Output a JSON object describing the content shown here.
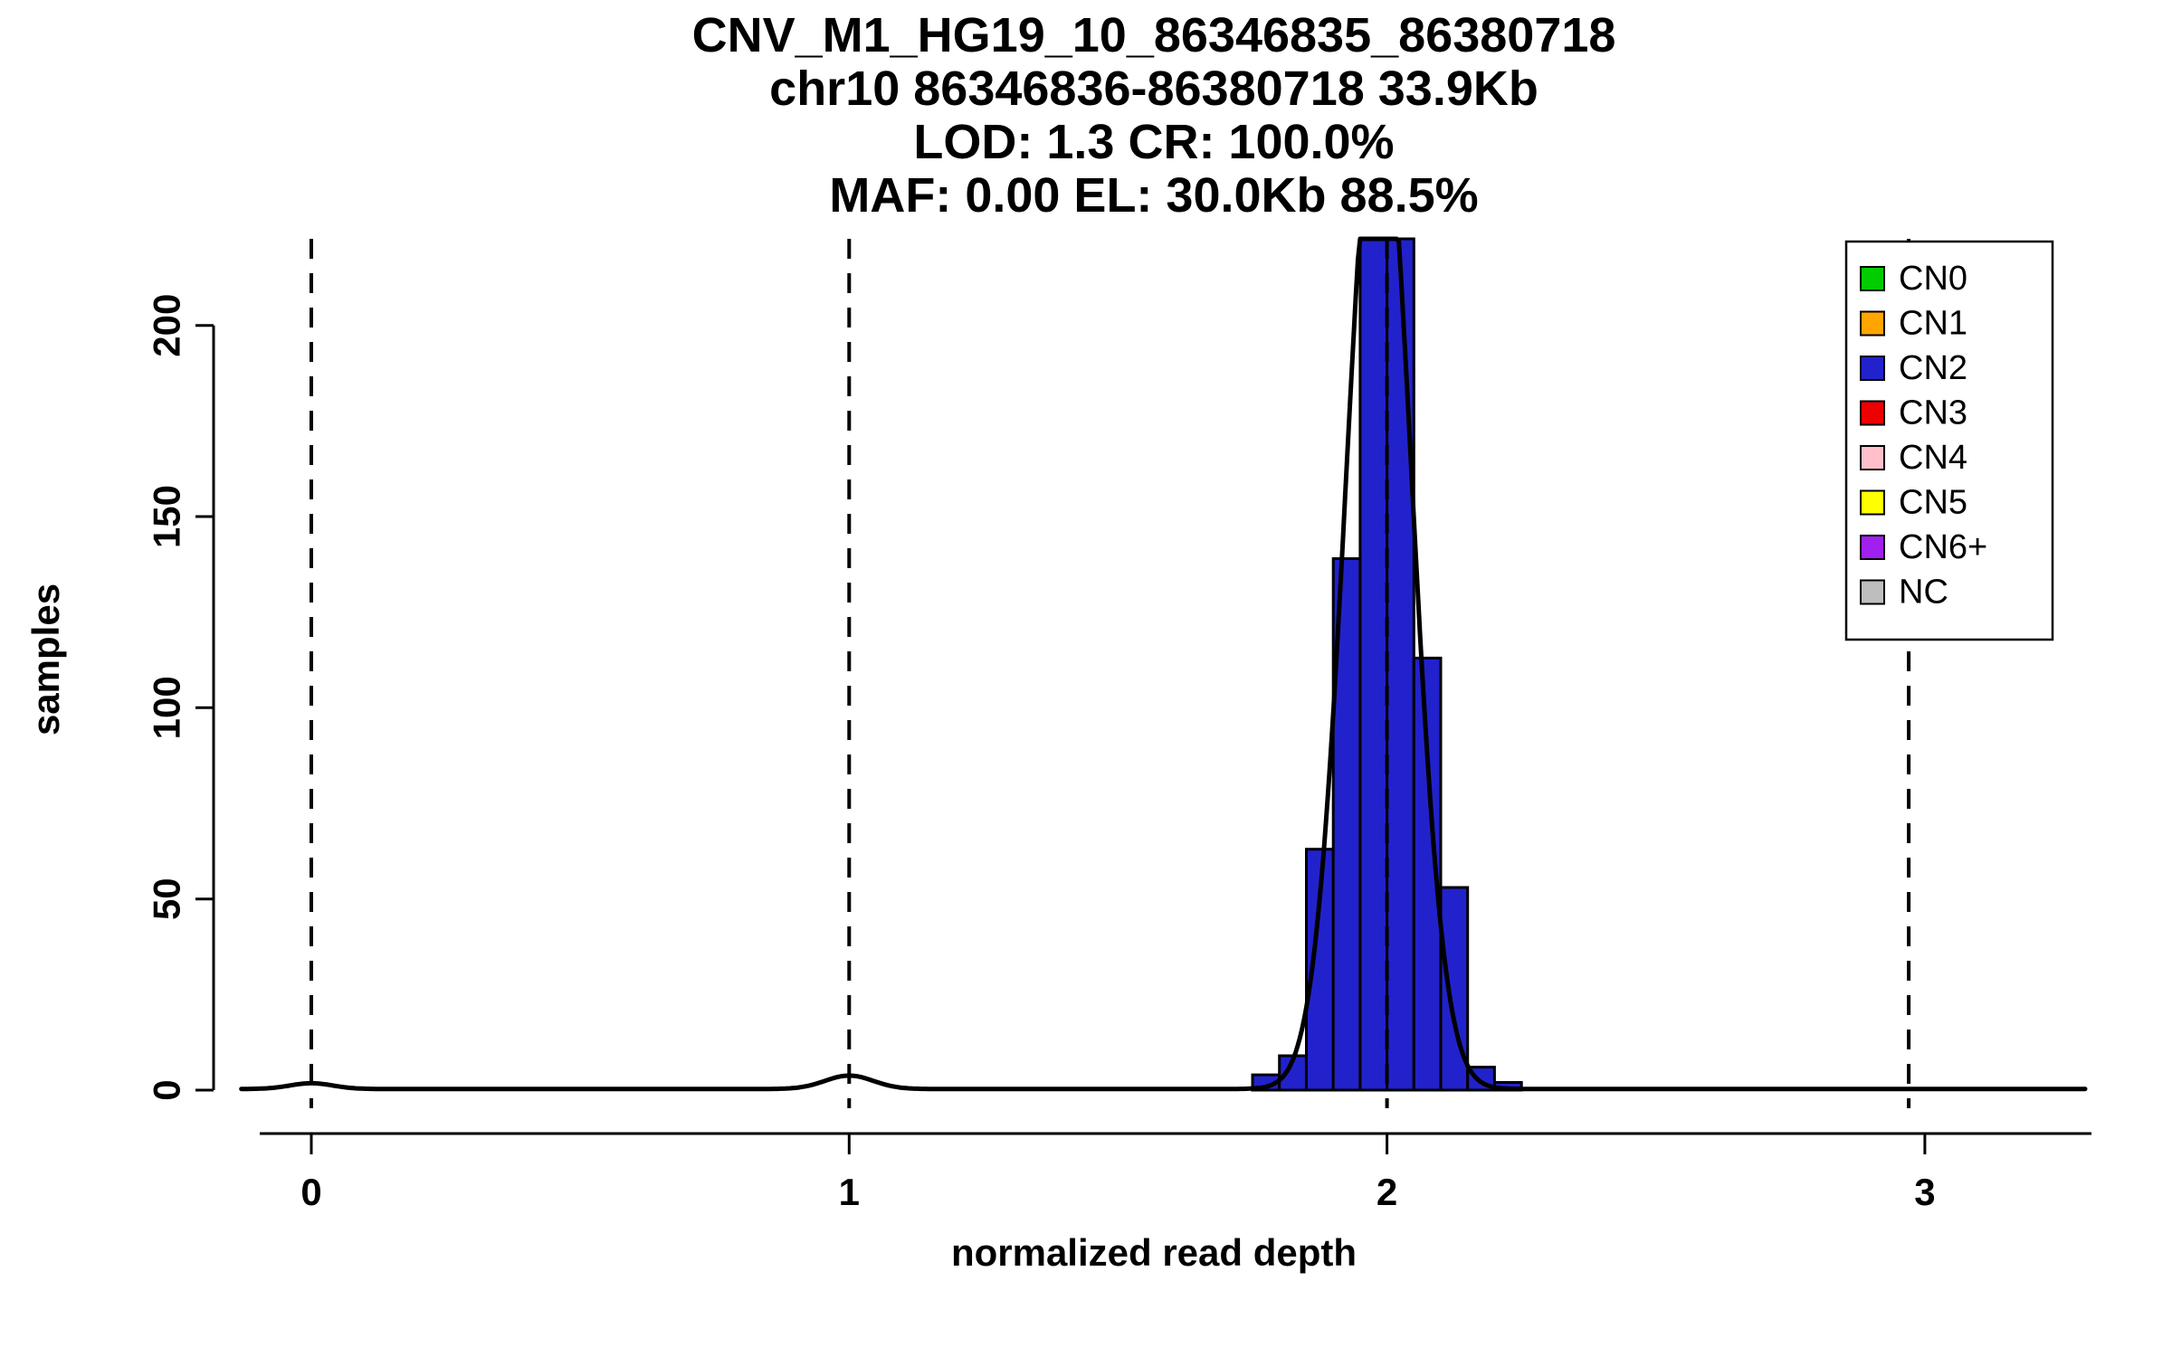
{
  "chart_data": {
    "type": "bar",
    "title": [
      "CNV_M1_HG19_10_86346835_86380718",
      "chr10 86346836-86380718 33.9Kb",
      "LOD: 1.3 CR: 100.0%",
      "MAF: 0.00 EL: 30.0Kb 88.5%"
    ],
    "xlabel": "normalized read depth",
    "ylabel": "samples",
    "xlim": [
      -0.2,
      3.3
    ],
    "ylim": [
      0,
      222
    ],
    "x_ticks": [
      0,
      1,
      2,
      3
    ],
    "y_ticks": [
      0,
      50,
      100,
      150,
      200
    ],
    "grid": false,
    "histogram": {
      "bins_start": 1.75,
      "bin_width": 0.05,
      "counts": [
        4,
        9,
        63,
        139,
        228,
        232,
        113,
        53,
        6,
        2
      ],
      "fill": "#2222CC",
      "stroke": "#000000",
      "note_clip": "peak bars exceed y-axis range and are clipped at plot top"
    },
    "dashed_guides_x": [
      0,
      1,
      2,
      2.97
    ],
    "density_curve": {
      "color": "#000000",
      "baseline": 0.3,
      "x_range": [
        -0.13,
        3.3
      ],
      "components": [
        {
          "mean": 1.985,
          "sd": 0.06,
          "peak": 268
        },
        {
          "mean": 1.0,
          "sd": 0.045,
          "peak": 3.5
        },
        {
          "mean": 0.0,
          "sd": 0.04,
          "peak": 1.5
        }
      ]
    },
    "legend": {
      "position": "top-right",
      "entries": [
        {
          "label": "CN0",
          "color": "#00CC00"
        },
        {
          "label": "CN1",
          "color": "#FFA500"
        },
        {
          "label": "CN2",
          "color": "#2222CC"
        },
        {
          "label": "CN3",
          "color": "#EE0000"
        },
        {
          "label": "CN4",
          "color": "#FFC0CB"
        },
        {
          "label": "CN5",
          "color": "#FFFF00"
        },
        {
          "label": "CN6+",
          "color": "#A020F0"
        },
        {
          "label": "NC",
          "color": "#BEBEBE"
        }
      ]
    }
  }
}
